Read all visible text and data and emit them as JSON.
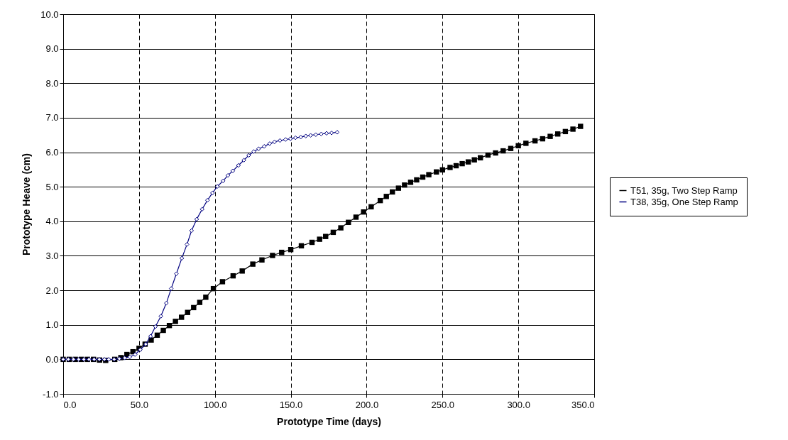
{
  "chart_data": {
    "type": "line",
    "xlabel": "Prototype Time (days)",
    "ylabel": "Prototype Heave (cm)",
    "xlim": [
      0,
      350
    ],
    "ylim": [
      -1,
      10
    ],
    "xticks": [
      {
        "value": 0,
        "label": "0.0"
      },
      {
        "value": 50,
        "label": "50.0"
      },
      {
        "value": 100,
        "label": "100.0"
      },
      {
        "value": 150,
        "label": "150.0"
      },
      {
        "value": 200,
        "label": "200.0"
      },
      {
        "value": 250,
        "label": "250.0"
      },
      {
        "value": 300,
        "label": "300.0"
      },
      {
        "value": 350,
        "label": "350.0"
      }
    ],
    "yticks": [
      {
        "value": -1,
        "label": "-1.0"
      },
      {
        "value": 0,
        "label": "0.0"
      },
      {
        "value": 1,
        "label": "1.0"
      },
      {
        "value": 2,
        "label": "2.0"
      },
      {
        "value": 3,
        "label": "3.0"
      },
      {
        "value": 4,
        "label": "4.0"
      },
      {
        "value": 5,
        "label": "5.0"
      },
      {
        "value": 6,
        "label": "6.0"
      },
      {
        "value": 7,
        "label": "7.0"
      },
      {
        "value": 8,
        "label": "8.0"
      },
      {
        "value": 9,
        "label": "9.0"
      },
      {
        "value": 10,
        "label": "10.0"
      }
    ],
    "grid": true,
    "legend": "right",
    "series": [
      {
        "name": "T51, 35g, Two Step Ramp",
        "color": "#000000",
        "marker": "square",
        "x": [
          0,
          4,
          8,
          12,
          16,
          20,
          24,
          28,
          34,
          38,
          42,
          46,
          50,
          54,
          58,
          62,
          66,
          70,
          74,
          78,
          82,
          86,
          90,
          94,
          99,
          105,
          112,
          118,
          125,
          131,
          138,
          144,
          150,
          157,
          164,
          169,
          173,
          178,
          183,
          188,
          193,
          198,
          203,
          209,
          213,
          217,
          221,
          225,
          229,
          233,
          237,
          241,
          246,
          250,
          255,
          259,
          263,
          267,
          271,
          275,
          280,
          285,
          290,
          295,
          300,
          305,
          311,
          316,
          321,
          326,
          331,
          336,
          341
        ],
        "values": [
          0,
          0,
          0,
          0,
          0,
          0,
          -0.02,
          -0.03,
          0,
          0.05,
          0.14,
          0.22,
          0.32,
          0.44,
          0.56,
          0.7,
          0.84,
          0.98,
          1.1,
          1.22,
          1.36,
          1.5,
          1.65,
          1.8,
          2.05,
          2.25,
          2.42,
          2.56,
          2.76,
          2.88,
          3.01,
          3.1,
          3.18,
          3.29,
          3.39,
          3.48,
          3.56,
          3.68,
          3.81,
          3.97,
          4.12,
          4.27,
          4.42,
          4.6,
          4.72,
          4.85,
          4.96,
          5.05,
          5.13,
          5.2,
          5.28,
          5.35,
          5.43,
          5.49,
          5.56,
          5.61,
          5.67,
          5.72,
          5.78,
          5.84,
          5.92,
          5.98,
          6.04,
          6.11,
          6.19,
          6.26,
          6.33,
          6.39,
          6.46,
          6.53,
          6.6,
          6.67,
          6.75
        ]
      },
      {
        "name": "T38, 35g, One Step Ramp",
        "color": "#000080",
        "marker": "diamond",
        "x": [
          0,
          3.4,
          6.8,
          10.2,
          13.6,
          17,
          20.4,
          23.8,
          27.2,
          30,
          33.6,
          37,
          40.6,
          43.9,
          47.4,
          50.8,
          54.4,
          57.6,
          60.8,
          64.4,
          68,
          71.2,
          74.6,
          78.2,
          81.6,
          84.6,
          88,
          91.6,
          95.1,
          98.4,
          101.6,
          105.4,
          108.6,
          111.8,
          115.5,
          119.1,
          122.3,
          125.6,
          128.8,
          132.5,
          136.1,
          139.3,
          142.9,
          146.6,
          149.8,
          153.1,
          156.6,
          159.9,
          163.1,
          166.5,
          170.1,
          173.6,
          176.9,
          180.6
        ],
        "values": [
          0,
          0,
          0,
          0,
          0,
          0,
          0,
          0,
          0,
          0,
          0,
          0.02,
          0.04,
          0.07,
          0.14,
          0.28,
          0.44,
          0.67,
          0.95,
          1.25,
          1.63,
          2.05,
          2.48,
          2.93,
          3.33,
          3.73,
          4.06,
          4.35,
          4.61,
          4.82,
          5.01,
          5.17,
          5.33,
          5.46,
          5.62,
          5.77,
          5.91,
          6.02,
          6.1,
          6.17,
          6.25,
          6.3,
          6.34,
          6.37,
          6.39,
          6.42,
          6.44,
          6.47,
          6.49,
          6.51,
          6.53,
          6.55,
          6.56,
          6.58
        ]
      }
    ]
  }
}
